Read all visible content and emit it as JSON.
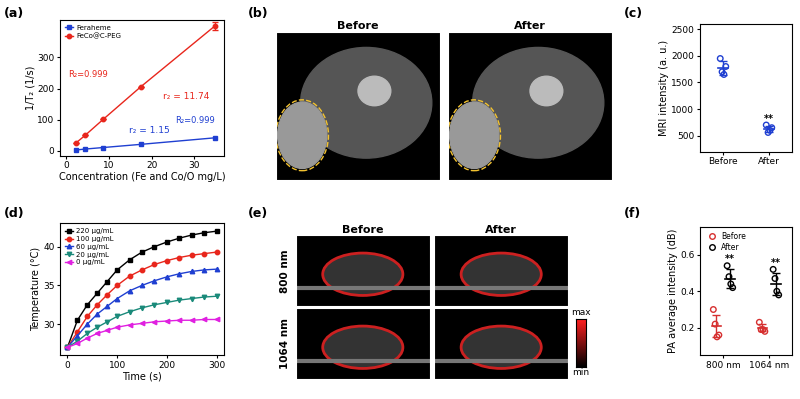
{
  "chart_data": [
    {
      "panel_label": "(a)",
      "type": "line",
      "x_label": "Concentration (Fe and Co/O mg/L)",
      "y_label": "1/T₂ (1/s)",
      "xlim": [
        -1.5,
        37
      ],
      "xticks": [
        0,
        10,
        20,
        30
      ],
      "ylim": [
        -15,
        420
      ],
      "yticks": [
        0,
        100,
        200,
        300
      ],
      "legend": "upper left",
      "series": [
        {
          "name": "Feraheme",
          "color": "#1f3fd1",
          "marker": "square",
          "line_style": "solid",
          "x": [
            2.2,
            4.4,
            8.7,
            17.4,
            34.8
          ],
          "values": [
            3,
            6,
            11,
            21,
            42
          ],
          "fit_label": "r₂ = 1.15",
          "r2_label": "R₂=0.999"
        },
        {
          "name": "FeCo@C-PEG",
          "color": "#e8261c",
          "marker": "circle",
          "line_style": "solid",
          "x": [
            2.2,
            4.4,
            8.7,
            17.4,
            34.8
          ],
          "values": [
            25,
            50,
            102,
            205,
            400
          ],
          "errors": [
            0,
            0,
            0,
            0,
            12
          ],
          "fit_label": "r₂ = 11.74",
          "r2_label": "R₂=0.999"
        }
      ]
    },
    {
      "panel_label": "(b)",
      "type": "image",
      "column_titles": [
        "Before",
        "After"
      ]
    },
    {
      "panel_label": "(c)",
      "type": "scatter",
      "y_label": "MRI intensity (a. u.)",
      "categories": [
        "Before",
        "After"
      ],
      "ylim": [
        200,
        2600
      ],
      "yticks": [
        500,
        1000,
        1500,
        2000,
        2500
      ],
      "series": [
        {
          "color": "#1f3fd1",
          "marker": "circle",
          "values": [
            [
              1950,
              1700,
              1650,
              1800
            ],
            [
              700,
              560,
              600,
              650
            ]
          ],
          "mean": [
            1775,
            628
          ],
          "errors": [
            130,
            60
          ],
          "significance": [
            null,
            "**"
          ]
        }
      ]
    },
    {
      "panel_label": "(d)",
      "type": "line",
      "x_label": "Time (s)",
      "y_label": "Temperature (°C)",
      "x": [
        0,
        20,
        40,
        60,
        80,
        100,
        125,
        150,
        175,
        200,
        225,
        250,
        275,
        300
      ],
      "xlim": [
        -15,
        315
      ],
      "xticks": [
        0,
        100,
        200,
        300
      ],
      "ylim": [
        26,
        43
      ],
      "yticks": [
        30,
        35,
        40
      ],
      "legend": "upper left",
      "series": [
        {
          "name": "220 μg/mL",
          "color": "#000000",
          "marker": "square",
          "line_style": "solid",
          "values": [
            27,
            30.5,
            32.5,
            34,
            35.5,
            37,
            38.3,
            39.3,
            40,
            40.6,
            41.1,
            41.5,
            41.8,
            42
          ]
        },
        {
          "name": "100 μg/mL",
          "color": "#e8261c",
          "marker": "circle",
          "line_style": "solid",
          "values": [
            27,
            29,
            31,
            32.5,
            33.8,
            35,
            36.2,
            37,
            37.7,
            38.2,
            38.6,
            38.9,
            39.1,
            39.3
          ]
        },
        {
          "name": "60 μg/mL",
          "color": "#1f3fd1",
          "marker": "triangle_up",
          "line_style": "solid",
          "values": [
            27,
            28.5,
            30,
            31.3,
            32.3,
            33.3,
            34.3,
            35,
            35.6,
            36.1,
            36.5,
            36.8,
            37,
            37.1
          ]
        },
        {
          "name": "20 μg/mL",
          "color": "#1a8a7a",
          "marker": "triangle_down",
          "line_style": "solid",
          "values": [
            27,
            27.8,
            28.8,
            29.6,
            30.3,
            31,
            31.6,
            32.1,
            32.5,
            32.8,
            33.1,
            33.3,
            33.5,
            33.6
          ]
        },
        {
          "name": "0 μg/mL",
          "color": "#e020e0",
          "marker": "triangle_left",
          "line_style": "solid",
          "values": [
            27,
            27.5,
            28.2,
            28.8,
            29.2,
            29.6,
            29.9,
            30.1,
            30.3,
            30.4,
            30.5,
            30.5,
            30.6,
            30.6
          ]
        }
      ]
    },
    {
      "panel_label": "(e)",
      "type": "image",
      "column_titles": [
        "Before",
        "After"
      ],
      "row_labels": [
        "800 nm",
        "1064 nm"
      ],
      "colorbar_labels": [
        "max",
        "min"
      ]
    },
    {
      "panel_label": "(f)",
      "type": "scatter",
      "y_label": "PA average intensity (dB)",
      "categories": [
        "800 nm",
        "1064 nm"
      ],
      "ylim": [
        0.05,
        0.75
      ],
      "yticks": [
        0.2,
        0.4,
        0.6
      ],
      "legend": "upper left",
      "series": [
        {
          "name": "Before",
          "color": "#d62f2f",
          "marker": "circle",
          "values": [
            [
              0.3,
              0.22,
              0.15,
              0.16
            ],
            [
              0.23,
              0.19,
              0.19,
              0.18
            ]
          ],
          "mean": [
            0.21,
            0.2
          ],
          "errors": [
            0.06,
            0.02
          ]
        },
        {
          "name": "After",
          "color": "#000000",
          "marker": "circle",
          "values": [
            [
              0.54,
              0.48,
              0.44,
              0.42
            ],
            [
              0.52,
              0.47,
              0.4,
              0.38
            ]
          ],
          "mean": [
            0.47,
            0.44
          ],
          "errors": [
            0.05,
            0.06
          ],
          "significance": [
            "**",
            "**"
          ]
        }
      ]
    }
  ]
}
